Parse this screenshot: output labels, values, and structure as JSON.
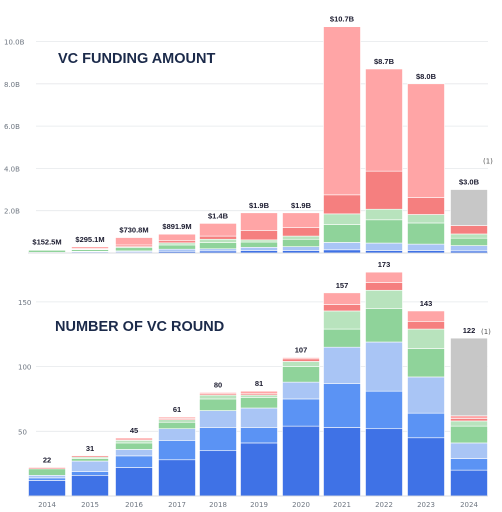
{
  "chart_data": [
    {
      "type": "bar",
      "stacked": true,
      "title": "VC FUNDING AMOUNT",
      "categories": [
        "2014",
        "2015",
        "2016",
        "2017",
        "2018",
        "2019",
        "2020",
        "2021",
        "2022",
        "2023",
        "2024"
      ],
      "totals_label": [
        "$152.5M",
        "$295.1M",
        "$730.8M",
        "$891.9M",
        "$1.4B",
        "$1.9B",
        "$1.9B",
        "$10.7B",
        "$8.7B",
        "$8.0B",
        "$3.0B"
      ],
      "yticks": [
        "2.0B",
        "4.0B",
        "6.0B",
        "8.0B",
        "10.0B"
      ],
      "ylim": [
        0,
        11.0
      ],
      "grid": true,
      "note": "(1)",
      "series": [
        {
          "color": "#3f72e6",
          "values": [
            0.02,
            0.05,
            0.05,
            0.08,
            0.1,
            0.12,
            0.12,
            0.15,
            0.12,
            0.12,
            0.1
          ]
        },
        {
          "color": "#a9c5f5",
          "values": [
            0.01,
            0.03,
            0.05,
            0.1,
            0.1,
            0.15,
            0.18,
            0.35,
            0.35,
            0.3,
            0.25
          ]
        },
        {
          "color": "#8fd39a",
          "values": [
            0.1,
            0.08,
            0.15,
            0.2,
            0.3,
            0.25,
            0.35,
            0.85,
            1.1,
            1.0,
            0.35
          ]
        },
        {
          "color": "#b8e3bd",
          "values": [
            0.01,
            0.03,
            0.05,
            0.1,
            0.15,
            0.1,
            0.15,
            0.5,
            0.5,
            0.4,
            0.2
          ]
        },
        {
          "color": "#f57f7f",
          "values": [
            0.01,
            0.02,
            0.08,
            0.1,
            0.15,
            0.45,
            0.4,
            0.9,
            1.8,
            0.8,
            0.4
          ]
        },
        {
          "color": "#ffa5a6",
          "values": [
            0.005,
            0.085,
            0.35,
            0.31,
            0.6,
            0.83,
            0.7,
            7.95,
            4.83,
            5.38,
            0.0
          ]
        },
        {
          "color": "#c7c7c7",
          "values": [
            0,
            0,
            0,
            0,
            0,
            0,
            0,
            0,
            0,
            0,
            1.7
          ]
        }
      ]
    },
    {
      "type": "bar",
      "stacked": true,
      "title": "NUMBER OF VC ROUND",
      "categories": [
        "2014",
        "2015",
        "2016",
        "2017",
        "2018",
        "2019",
        "2020",
        "2021",
        "2022",
        "2023",
        "2024"
      ],
      "totals": [
        22,
        31,
        45,
        61,
        80,
        81,
        107,
        157,
        173,
        143,
        122
      ],
      "yticks": [
        "50",
        "100",
        "150"
      ],
      "ylim": [
        0,
        175
      ],
      "grid": true,
      "note": "(1)",
      "series": [
        {
          "color": "#3f72e6",
          "values": [
            12,
            16,
            22,
            28,
            35,
            41,
            54,
            53,
            52,
            45,
            20
          ]
        },
        {
          "color": "#5b93f4",
          "values": [
            2,
            3,
            9,
            15,
            18,
            12,
            21,
            34,
            29,
            19,
            9
          ]
        },
        {
          "color": "#a9c5f5",
          "values": [
            2,
            8,
            5,
            9,
            13,
            15,
            13,
            28,
            38,
            28,
            12
          ]
        },
        {
          "color": "#8fd39a",
          "values": [
            5,
            2,
            5,
            5,
            9,
            8,
            12,
            14,
            26,
            22,
            13
          ]
        },
        {
          "color": "#b8e3bd",
          "values": [
            0,
            1,
            2,
            2,
            3,
            2,
            4,
            14,
            14,
            15,
            4
          ]
        },
        {
          "color": "#f57f7f",
          "values": [
            1,
            1,
            1,
            1,
            1,
            1,
            2,
            5,
            6,
            6,
            2
          ]
        },
        {
          "color": "#ffa5a6",
          "values": [
            0,
            0,
            1,
            1,
            1,
            2,
            1,
            9,
            8,
            8,
            2
          ]
        },
        {
          "color": "#c7c7c7",
          "values": [
            0,
            0,
            0,
            0,
            0,
            0,
            0,
            0,
            0,
            0,
            60
          ]
        }
      ]
    }
  ]
}
